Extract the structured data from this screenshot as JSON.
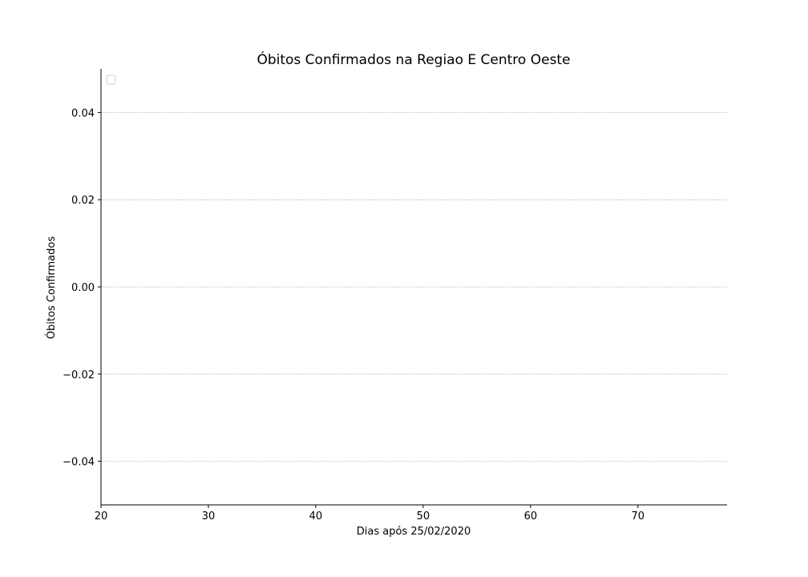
{
  "chart_data": {
    "type": "line",
    "title": "Óbitos Confirmados na Regiao E Centro Oeste",
    "xlabel": "Dias após 25/02/2020",
    "ylabel": "Óbitos Confirmados",
    "xlim": [
      20,
      78.3
    ],
    "ylim": [
      -0.05,
      0.05
    ],
    "x_ticks": [
      20,
      30,
      40,
      50,
      60,
      70
    ],
    "x_tick_labels": [
      "20",
      "30",
      "40",
      "50",
      "60",
      "70"
    ],
    "y_ticks": [
      -0.04,
      -0.02,
      0.0,
      0.02,
      0.04
    ],
    "y_tick_labels": [
      "−0.04",
      "−0.02",
      "0.00",
      "0.02",
      "0.04"
    ],
    "series": [],
    "grid": "horizontal, dotted",
    "legend": "top-left (empty)",
    "colors": {
      "axis": "#000000",
      "grid": "#b0b0b0",
      "legend_border": "#cccccc"
    }
  }
}
